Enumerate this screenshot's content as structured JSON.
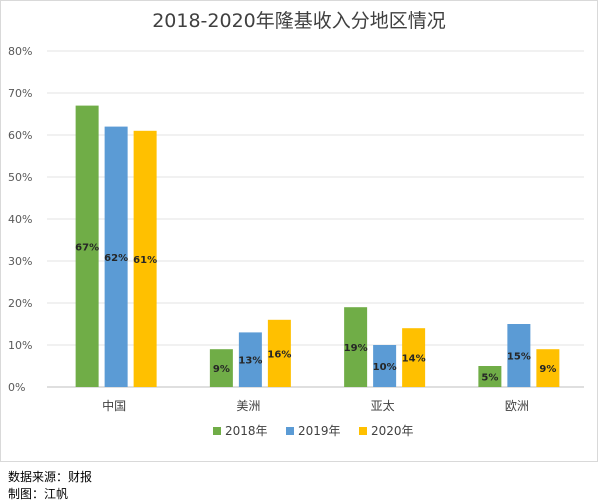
{
  "chart_data": {
    "type": "bar",
    "title": "2018-2020年隆基收入分地区情况",
    "categories": [
      "中国",
      "美洲",
      "亚太",
      "欧洲"
    ],
    "series": [
      {
        "name": "2018年",
        "color": "#70ad47",
        "values": [
          67,
          9,
          19,
          5
        ],
        "labels": [
          "67%",
          "9%",
          "19%",
          "5%"
        ]
      },
      {
        "name": "2019年",
        "color": "#5b9bd5",
        "values": [
          62,
          13,
          10,
          15
        ],
        "labels": [
          "62%",
          "13%",
          "10%",
          "15%"
        ]
      },
      {
        "name": "2020年",
        "color": "#ffc000",
        "values": [
          61,
          16,
          14,
          9
        ],
        "labels": [
          "61%",
          "16%",
          "14%",
          "9%"
        ]
      }
    ],
    "ylim": [
      0,
      80
    ],
    "y_ticks": [
      0,
      10,
      20,
      30,
      40,
      50,
      60,
      70,
      80
    ],
    "y_tick_labels": [
      "0%",
      "10%",
      "20%",
      "30%",
      "40%",
      "50%",
      "60%",
      "70%",
      "80%"
    ],
    "grid": true,
    "legend_position": "bottom"
  },
  "footer": {
    "source": "数据来源：财报",
    "author": "制图：江帆"
  }
}
